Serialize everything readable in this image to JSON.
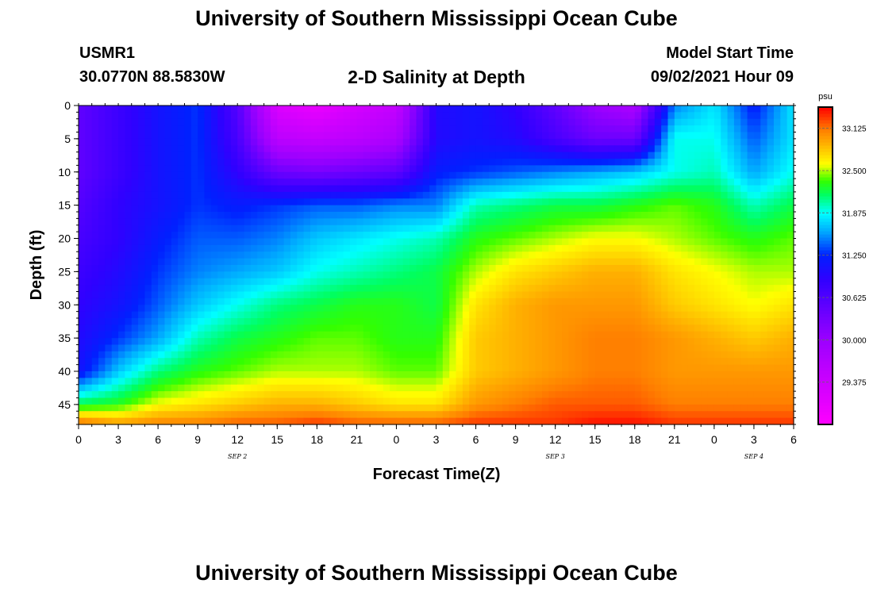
{
  "header": {
    "title": "University of Southern Mississippi Ocean Cube",
    "station_id": "USMR1",
    "coords": "30.0770N  88.5830W",
    "plot_title": "2-D Salinity at Depth",
    "start_label": "Model Start Time",
    "start_value": "09/02/2021 Hour 09"
  },
  "footer": {
    "title": "University of Southern Mississippi Ocean Cube"
  },
  "chart_data": {
    "type": "heatmap",
    "title": "2-D Salinity at Depth",
    "xlabel": "Forecast Time(Z)",
    "ylabel": "Depth (ft)",
    "x_tick_labels": [
      "0",
      "3",
      "6",
      "9",
      "12",
      "15",
      "18",
      "21",
      "0",
      "3",
      "6",
      "9",
      "12",
      "15",
      "18",
      "21",
      "0",
      "3",
      "6"
    ],
    "date_labels": [
      {
        "label": "SEP 2",
        "at_tick": 4
      },
      {
        "label": "SEP 3",
        "at_tick": 12
      },
      {
        "label": "SEP 4",
        "at_tick": 17
      }
    ],
    "xlim": [
      0,
      54
    ],
    "y_ticks": [
      0,
      5,
      10,
      15,
      20,
      25,
      30,
      35,
      40,
      45
    ],
    "ylim": [
      0,
      48
    ],
    "y_inverted": true,
    "colorbar": {
      "unit": "psu",
      "min": 28.75,
      "max": 33.4375,
      "tick_labels": [
        "33.125",
        "32.500",
        "31.875",
        "31.250",
        "30.625",
        "30.000",
        "29.375"
      ],
      "tick_values": [
        33.125,
        32.5,
        31.875,
        31.25,
        30.625,
        30.0,
        29.375
      ],
      "stops": [
        {
          "v": 28.75,
          "c": "#ff00ff"
        },
        {
          "v": 30.0,
          "c": "#9c00ff"
        },
        {
          "v": 30.9,
          "c": "#3000ff"
        },
        {
          "v": 31.25,
          "c": "#0020ff"
        },
        {
          "v": 31.6,
          "c": "#00a8ff"
        },
        {
          "v": 31.875,
          "c": "#00ffff"
        },
        {
          "v": 32.15,
          "c": "#00ff60"
        },
        {
          "v": 32.35,
          "c": "#33ff00"
        },
        {
          "v": 32.6,
          "c": "#ffff00"
        },
        {
          "v": 32.9,
          "c": "#ffb000"
        },
        {
          "v": 33.1,
          "c": "#ff8000"
        },
        {
          "v": 33.4375,
          "c": "#ff0000"
        }
      ]
    },
    "profile_hours": [
      0,
      3,
      6,
      9,
      12,
      15,
      18,
      21,
      24,
      27,
      30,
      33,
      36,
      39,
      42,
      45,
      48,
      51,
      54
    ],
    "profile_depths": [
      0,
      5,
      10,
      15,
      20,
      25,
      30,
      35,
      40,
      45,
      48
    ],
    "salinity_profiles": [
      [
        30.5,
        30.5,
        30.5,
        30.6,
        30.7,
        30.8,
        30.9,
        31.0,
        31.1,
        32.2,
        33.2
      ],
      [
        30.8,
        30.8,
        30.8,
        30.9,
        30.9,
        31.0,
        31.1,
        31.3,
        31.7,
        32.3,
        33.0
      ],
      [
        31.1,
        31.1,
        31.1,
        31.1,
        31.2,
        31.3,
        31.4,
        31.6,
        32.1,
        32.6,
        33.1
      ],
      [
        31.3,
        31.3,
        31.3,
        31.3,
        31.4,
        31.5,
        31.7,
        32.0,
        32.3,
        32.7,
        33.1
      ],
      [
        30.6,
        30.7,
        30.9,
        31.2,
        31.4,
        31.6,
        31.9,
        32.2,
        32.4,
        32.8,
        33.2
      ],
      [
        29.2,
        29.6,
        30.4,
        31.3,
        31.5,
        31.7,
        32.1,
        32.3,
        32.5,
        32.9,
        33.2
      ],
      [
        29.0,
        29.5,
        30.3,
        31.4,
        31.7,
        31.9,
        32.2,
        32.4,
        32.5,
        32.9,
        33.3
      ],
      [
        29.3,
        29.6,
        30.4,
        31.4,
        31.8,
        32.0,
        32.3,
        32.4,
        32.5,
        32.8,
        33.2
      ],
      [
        29.5,
        29.8,
        30.5,
        31.5,
        31.9,
        32.1,
        32.3,
        32.3,
        32.4,
        32.7,
        33.2
      ],
      [
        31.0,
        31.0,
        31.2,
        31.5,
        32.0,
        32.2,
        32.2,
        32.3,
        32.4,
        32.7,
        33.2
      ],
      [
        31.1,
        31.1,
        31.3,
        32.0,
        32.3,
        32.5,
        32.7,
        32.8,
        32.8,
        33.0,
        33.3
      ],
      [
        30.9,
        31.0,
        31.4,
        32.1,
        32.4,
        32.7,
        32.9,
        32.9,
        32.9,
        33.1,
        33.3
      ],
      [
        30.5,
        30.7,
        31.5,
        32.2,
        32.5,
        32.8,
        33.0,
        33.0,
        33.0,
        33.2,
        33.3
      ],
      [
        30.0,
        30.4,
        31.6,
        32.2,
        32.6,
        32.9,
        33.0,
        33.1,
        33.1,
        33.2,
        33.4
      ],
      [
        29.8,
        30.4,
        31.7,
        32.3,
        32.6,
        32.9,
        33.0,
        33.1,
        33.1,
        33.2,
        33.4
      ],
      [
        31.5,
        31.9,
        31.9,
        32.4,
        32.5,
        32.7,
        32.8,
        33.0,
        33.0,
        33.1,
        33.3
      ],
      [
        31.8,
        31.9,
        32.0,
        32.3,
        32.4,
        32.6,
        32.7,
        32.9,
        33.0,
        33.1,
        33.3
      ],
      [
        31.2,
        31.4,
        31.6,
        32.0,
        32.3,
        32.5,
        32.6,
        32.8,
        33.0,
        33.1,
        33.3
      ],
      [
        31.8,
        31.8,
        31.9,
        32.2,
        32.4,
        32.5,
        32.7,
        32.9,
        33.0,
        33.1,
        33.3
      ]
    ]
  }
}
